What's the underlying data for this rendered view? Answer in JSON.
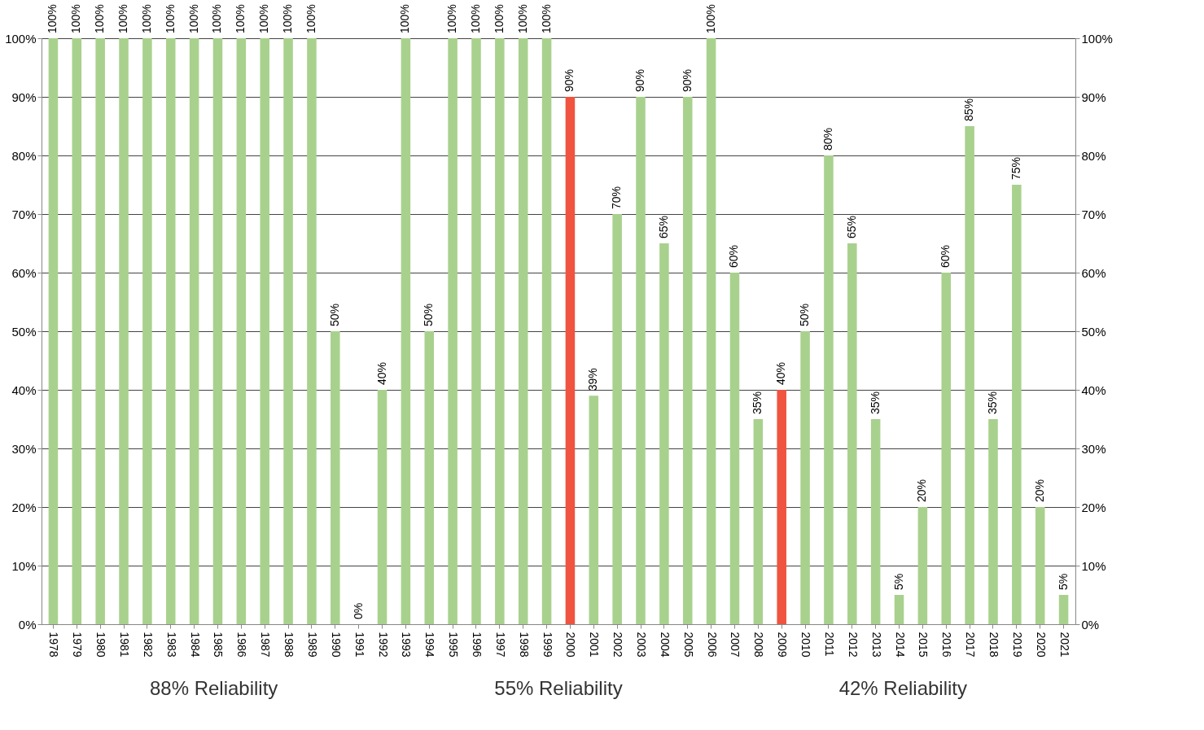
{
  "chart_data": {
    "type": "bar",
    "categories": [
      "1978",
      "1979",
      "1980",
      "1981",
      "1982",
      "1983",
      "1984",
      "1985",
      "1986",
      "1987",
      "1988",
      "1989",
      "1990",
      "1991",
      "1992",
      "1993",
      "1994",
      "1995",
      "1996",
      "1997",
      "1998",
      "1999",
      "2000",
      "2001",
      "2002",
      "2003",
      "2004",
      "2005",
      "2006",
      "2007",
      "2008",
      "2009",
      "2010",
      "2011",
      "2012",
      "2013",
      "2014",
      "2015",
      "2016",
      "2017",
      "2018",
      "2019",
      "2020",
      "2021"
    ],
    "values": [
      100,
      100,
      100,
      100,
      100,
      100,
      100,
      100,
      100,
      100,
      100,
      100,
      50,
      0,
      40,
      100,
      50,
      100,
      100,
      100,
      100,
      100,
      90,
      39,
      70,
      90,
      65,
      90,
      100,
      60,
      35,
      40,
      50,
      80,
      65,
      35,
      5,
      20,
      60,
      85,
      35,
      75,
      20,
      5
    ],
    "colors": [
      "#a9d18e",
      "#a9d18e",
      "#a9d18e",
      "#a9d18e",
      "#a9d18e",
      "#a9d18e",
      "#a9d18e",
      "#a9d18e",
      "#a9d18e",
      "#a9d18e",
      "#a9d18e",
      "#a9d18e",
      "#a9d18e",
      "#a9d18e",
      "#a9d18e",
      "#a9d18e",
      "#a9d18e",
      "#a9d18e",
      "#a9d18e",
      "#a9d18e",
      "#a9d18e",
      "#a9d18e",
      "#f0533f",
      "#a9d18e",
      "#a9d18e",
      "#a9d18e",
      "#a9d18e",
      "#a9d18e",
      "#a9d18e",
      "#a9d18e",
      "#a9d18e",
      "#f0533f",
      "#a9d18e",
      "#a9d18e",
      "#a9d18e",
      "#a9d18e",
      "#a9d18e",
      "#a9d18e",
      "#a9d18e",
      "#a9d18e",
      "#a9d18e",
      "#a9d18e",
      "#a9d18e",
      "#a9d18e"
    ],
    "value_labels": [
      "100%",
      "100%",
      "100%",
      "100%",
      "100%",
      "100%",
      "100%",
      "100%",
      "100%",
      "100%",
      "100%",
      "100%",
      "50%",
      "0%",
      "40%",
      "100%",
      "50%",
      "100%",
      "100%",
      "100%",
      "100%",
      "100%",
      "90%",
      "39%",
      "70%",
      "90%",
      "65%",
      "90%",
      "100%",
      "60%",
      "35%",
      "40%",
      "50%",
      "80%",
      "65%",
      "35%",
      "5%",
      "20%",
      "60%",
      "85%",
      "35%",
      "75%",
      "20%",
      "5%"
    ],
    "ylim": [
      0,
      100
    ],
    "yticks": [
      {
        "value": 0,
        "label": "0%"
      },
      {
        "value": 10,
        "label": "10%"
      },
      {
        "value": 20,
        "label": "20%"
      },
      {
        "value": 30,
        "label": "30%"
      },
      {
        "value": 40,
        "label": "40%"
      },
      {
        "value": 50,
        "label": "50%"
      },
      {
        "value": 60,
        "label": "60%"
      },
      {
        "value": 70,
        "label": "70%"
      },
      {
        "value": 80,
        "label": "80%"
      },
      {
        "value": 90,
        "label": "90%"
      },
      {
        "value": 100,
        "label": "100%"
      }
    ],
    "y2lim": [
      0,
      100
    ],
    "y2ticks": [
      {
        "value": 0,
        "label": "0%"
      },
      {
        "value": 10,
        "label": "10%"
      },
      {
        "value": 20,
        "label": "20%"
      },
      {
        "value": 30,
        "label": "30%"
      },
      {
        "value": 40,
        "label": "40%"
      },
      {
        "value": 50,
        "label": "50%"
      },
      {
        "value": 60,
        "label": "60%"
      },
      {
        "value": 70,
        "label": "70%"
      },
      {
        "value": 80,
        "label": "80%"
      },
      {
        "value": 90,
        "label": "90%"
      },
      {
        "value": 100,
        "label": "100%"
      }
    ],
    "grid": "y",
    "annotations": [
      "88% Reliability",
      "55% Reliability",
      "42% Reliability"
    ]
  }
}
